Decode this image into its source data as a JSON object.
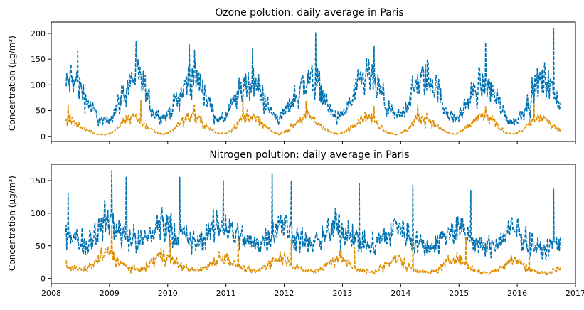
{
  "chart_data": [
    {
      "type": "line",
      "title": "Ozone polution: daily average in Paris",
      "ylabel": "Concentration (µg/m³)",
      "xlabel": "",
      "x_range": [
        "2008-01",
        "2017-01"
      ],
      "xlim": [
        2008.0,
        2017.0
      ],
      "ylim": [
        -10,
        222
      ],
      "yticks": [
        0,
        50,
        100,
        150,
        200
      ],
      "xticks": [
        2008,
        2009,
        2010,
        2011,
        2012,
        2013,
        2014,
        2015,
        2016,
        2017
      ],
      "x_tick_labels_visible": false,
      "grid": false,
      "legend": "none",
      "line_style": "dashed",
      "data_start": "2008-04",
      "data_end": "2016-09",
      "series": [
        {
          "color": "#0173b2",
          "month_start": "2008-04",
          "values": [
            95,
            110,
            105,
            95,
            78,
            60,
            45,
            30,
            28,
            32,
            48,
            68,
            85,
            100,
            118,
            112,
            95,
            72,
            50,
            40,
            36,
            40,
            58,
            72,
            88,
            105,
            120,
            112,
            98,
            80,
            52,
            38,
            30,
            38,
            55,
            70,
            90,
            100,
            108,
            100,
            90,
            72,
            50,
            40,
            35,
            45,
            58,
            75,
            85,
            102,
            110,
            112,
            100,
            80,
            58,
            42,
            35,
            40,
            55,
            72,
            88,
            100,
            118,
            110,
            98,
            82,
            60,
            45,
            38,
            42,
            55,
            78,
            92,
            105,
            115,
            112,
            100,
            80,
            60,
            42,
            32,
            38,
            55,
            70,
            85,
            98,
            105,
            100,
            85,
            70,
            50,
            35,
            28,
            32,
            48,
            65,
            80,
            95,
            110,
            108,
            92,
            78,
            60,
            45
          ],
          "peaks": [
            [
              "2008-06",
              165
            ],
            [
              "2009-06",
              185
            ],
            [
              "2010-05",
              178
            ],
            [
              "2011-06",
              170
            ],
            [
              "2012-07",
              202
            ],
            [
              "2013-07",
              175
            ],
            [
              "2014-06",
              148
            ],
            [
              "2015-06",
              182
            ],
            [
              "2016-08",
              210
            ]
          ]
        },
        {
          "color": "#de8f05",
          "month_start": "2008-04",
          "values": [
            28,
            30,
            25,
            20,
            15,
            10,
            6,
            4,
            3,
            5,
            10,
            18,
            28,
            38,
            40,
            34,
            26,
            18,
            10,
            6,
            4,
            6,
            12,
            22,
            30,
            38,
            40,
            34,
            28,
            20,
            12,
            7,
            5,
            7,
            12,
            22,
            30,
            38,
            40,
            34,
            28,
            20,
            12,
            7,
            5,
            8,
            14,
            22,
            30,
            36,
            38,
            34,
            26,
            18,
            10,
            6,
            4,
            6,
            12,
            22,
            30,
            36,
            38,
            34,
            26,
            18,
            10,
            6,
            4,
            6,
            12,
            20,
            28,
            34,
            36,
            32,
            24,
            16,
            10,
            6,
            4,
            6,
            12,
            20,
            28,
            36,
            40,
            36,
            28,
            20,
            12,
            7,
            5,
            7,
            12,
            20,
            28,
            34,
            36,
            30,
            22,
            15,
            10,
            6
          ],
          "peaks": [
            [
              "2008-04",
              62
            ],
            [
              "2009-07",
              70
            ],
            [
              "2010-06",
              60
            ],
            [
              "2011-04",
              72
            ],
            [
              "2012-05",
              68
            ],
            [
              "2013-07",
              58
            ],
            [
              "2014-04",
              62
            ],
            [
              "2015-06",
              58
            ],
            [
              "2016-04",
              65
            ]
          ]
        }
      ]
    },
    {
      "type": "line",
      "title": "Nitrogen polution: daily average in Paris",
      "ylabel": "Concentration (µg/m³)",
      "xlabel": "",
      "xlim": [
        2008.0,
        2017.0
      ],
      "ylim": [
        -8,
        175
      ],
      "yticks": [
        0,
        50,
        100,
        150
      ],
      "xticks": [
        2008,
        2009,
        2010,
        2011,
        2012,
        2013,
        2014,
        2015,
        2016,
        2017
      ],
      "x_tick_labels": [
        "2008",
        "2009",
        "2010",
        "2011",
        "2012",
        "2013",
        "2014",
        "2015",
        "2016",
        "2017"
      ],
      "grid": false,
      "legend": "none",
      "line_style": "dashed",
      "data_start": "2008-04",
      "data_end": "2016-09",
      "series": [
        {
          "color": "#0173b2",
          "month_start": "2008-04",
          "values": [
            75,
            65,
            60,
            55,
            55,
            62,
            70,
            78,
            85,
            88,
            82,
            75,
            70,
            65,
            60,
            55,
            58,
            65,
            72,
            80,
            85,
            82,
            78,
            70,
            65,
            60,
            56,
            54,
            58,
            65,
            72,
            80,
            82,
            80,
            75,
            68,
            62,
            58,
            55,
            52,
            56,
            62,
            70,
            78,
            82,
            80,
            75,
            68,
            62,
            58,
            54,
            52,
            55,
            62,
            68,
            75,
            80,
            78,
            72,
            65,
            60,
            56,
            52,
            50,
            54,
            60,
            66,
            72,
            78,
            76,
            70,
            64,
            58,
            54,
            50,
            48,
            52,
            58,
            64,
            70,
            76,
            74,
            68,
            62,
            56,
            52,
            48,
            46,
            50,
            56,
            62,
            68,
            72,
            70,
            64,
            58,
            52,
            48,
            45,
            44,
            48,
            55,
            62,
            68
          ],
          "peaks": [
            [
              "2008-04",
              130
            ],
            [
              "2009-01",
              165
            ],
            [
              "2009-04",
              155
            ],
            [
              "2010-03",
              155
            ],
            [
              "2010-12",
              150
            ],
            [
              "2011-10",
              160
            ],
            [
              "2012-02",
              150
            ],
            [
              "2013-04",
              145
            ],
            [
              "2014-03",
              143
            ],
            [
              "2015-03",
              135
            ],
            [
              "2016-08",
              137
            ]
          ]
        },
        {
          "color": "#de8f05",
          "month_start": "2008-04",
          "values": [
            22,
            18,
            15,
            13,
            14,
            18,
            24,
            32,
            38,
            40,
            34,
            26,
            20,
            16,
            14,
            13,
            15,
            20,
            26,
            32,
            36,
            34,
            28,
            22,
            18,
            15,
            13,
            12,
            14,
            18,
            24,
            30,
            34,
            32,
            26,
            20,
            16,
            14,
            12,
            11,
            13,
            18,
            24,
            30,
            34,
            32,
            26,
            20,
            16,
            13,
            12,
            11,
            13,
            17,
            22,
            28,
            32,
            30,
            24,
            18,
            15,
            13,
            11,
            10,
            12,
            16,
            22,
            26,
            30,
            28,
            22,
            17,
            14,
            12,
            10,
            9,
            11,
            15,
            20,
            26,
            32,
            30,
            24,
            18,
            14,
            11,
            9,
            8,
            10,
            14,
            20,
            26,
            30,
            28,
            22,
            16,
            12,
            10,
            9,
            8,
            10,
            14,
            20,
            24
          ],
          "peaks": [
            [
              "2009-01",
              82
            ],
            [
              "2010-01",
              58
            ],
            [
              "2011-03",
              62
            ],
            [
              "2012-02",
              60
            ],
            [
              "2013-03",
              48
            ],
            [
              "2014-03",
              55
            ],
            [
              "2015-02",
              62
            ],
            [
              "2016-03",
              50
            ]
          ]
        }
      ]
    }
  ]
}
